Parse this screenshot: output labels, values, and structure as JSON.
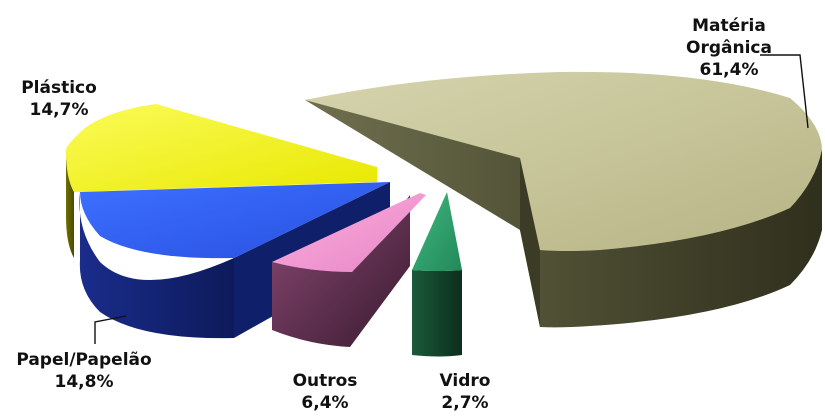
{
  "chart_data": {
    "type": "pie",
    "style": "3d-exploded",
    "title": "",
    "categories": [
      "Matéria Orgânica",
      "Vidro",
      "Outros",
      "Papel/Papelão",
      "Plástico"
    ],
    "values": [
      61.4,
      2.7,
      6.4,
      14.8,
      14.7
    ],
    "unit": "%",
    "labels": {
      "materia": {
        "line1": "Matéria",
        "line2": "Orgânica",
        "value": "61,4%"
      },
      "vidro": {
        "line1": "Vidro",
        "value": "2,7%"
      },
      "outros": {
        "line1": "Outros",
        "value": "6,4%"
      },
      "papel": {
        "line1": "Papel/Papelão",
        "value": "14,8%"
      },
      "plastico": {
        "line1": "Plástico",
        "value": "14,7%"
      }
    },
    "colors": {
      "materia": "#c9c79a",
      "vidro": "#2e9e68",
      "outros": "#f29ad4",
      "papel": "#2f63f2",
      "plastico": "#f2f21a"
    },
    "legend": "none"
  }
}
